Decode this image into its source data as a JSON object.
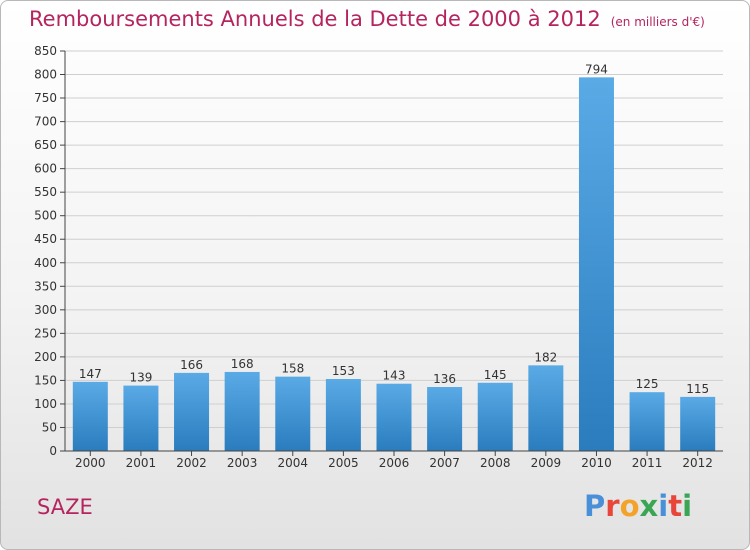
{
  "header": {
    "title": "Remboursements Annuels de la Dette de 2000 à 2012",
    "subtitle": "(en milliers d'€)"
  },
  "footer": {
    "location": "SAZE",
    "logo_text": "Proxiti",
    "logo_colors": [
      "#4a90d9",
      "#e8463a",
      "#f4a32a",
      "#3aa655",
      "#4a90d9",
      "#e8463a",
      "#3aa655"
    ]
  },
  "colors": {
    "accent": "#b5245e",
    "bar_top": "#5aaae6",
    "bar_bottom": "#2a7cbd",
    "axis": "#444444",
    "grid": "#cfcfcf"
  },
  "chart_data": {
    "type": "bar",
    "categories": [
      "2000",
      "2001",
      "2002",
      "2003",
      "2004",
      "2005",
      "2006",
      "2007",
      "2008",
      "2009",
      "2010",
      "2011",
      "2012"
    ],
    "values": [
      147,
      139,
      166,
      168,
      158,
      153,
      143,
      136,
      145,
      182,
      794,
      125,
      115
    ],
    "ylim": [
      0,
      850
    ],
    "yticks": [
      0,
      50,
      100,
      150,
      200,
      250,
      300,
      350,
      400,
      450,
      500,
      550,
      600,
      650,
      700,
      750,
      800,
      850
    ],
    "grid": "horizontal",
    "data_labels": true
  }
}
